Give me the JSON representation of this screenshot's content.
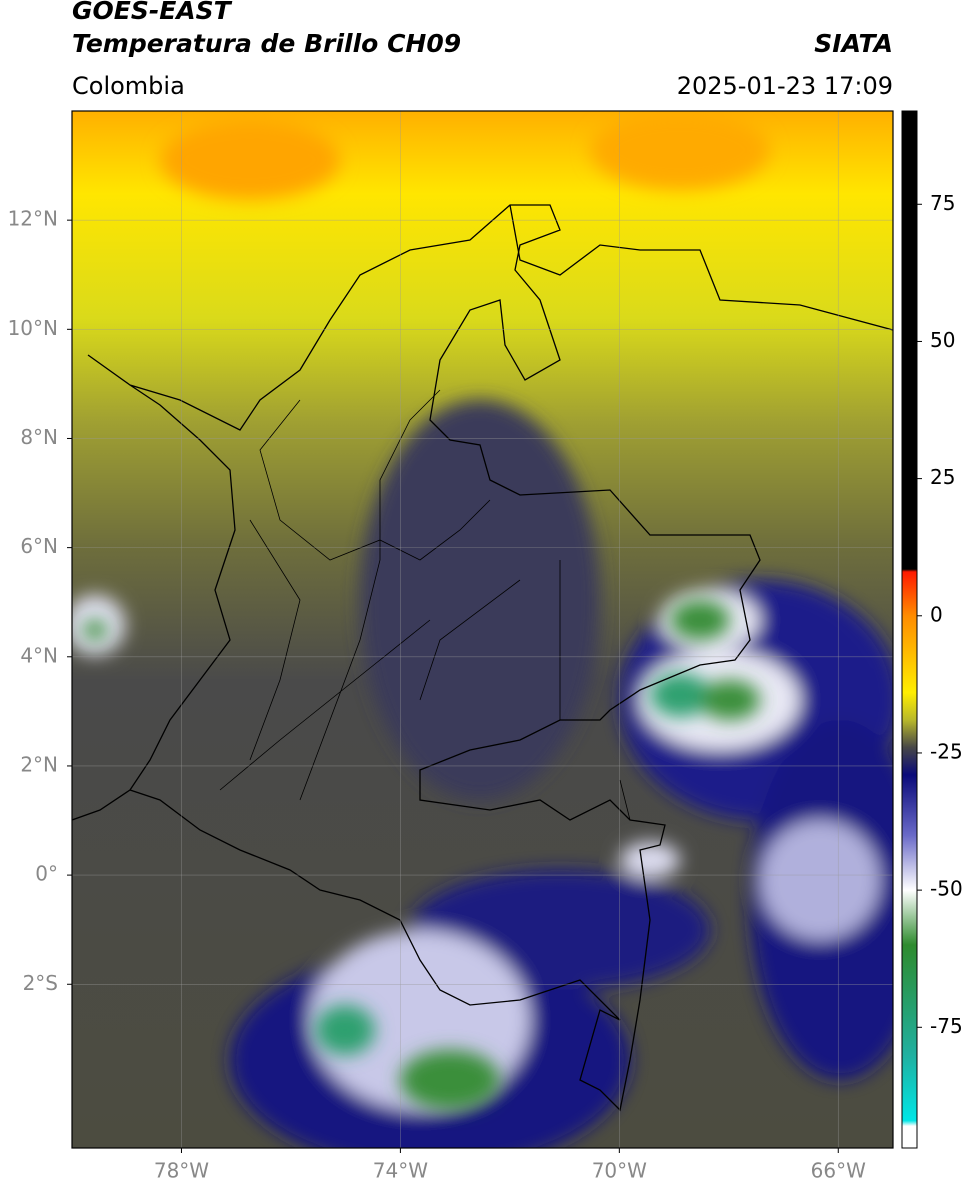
{
  "header": {
    "title": "GOES-EAST",
    "subtitle": "Temperatura de Brillo CH09",
    "source": "SIATA",
    "region": "Colombia",
    "datetime": "2025-01-23 17:09"
  },
  "map": {
    "xlim": [
      -80,
      -65
    ],
    "ylim": [
      -5,
      14
    ],
    "grid": true,
    "xticks": [
      {
        "value": -78,
        "label": "78°W"
      },
      {
        "value": -74,
        "label": "74°W"
      },
      {
        "value": -70,
        "label": "70°W"
      },
      {
        "value": -66,
        "label": "66°W"
      }
    ],
    "yticks": [
      {
        "value": 12,
        "label": "12°N"
      },
      {
        "value": 10,
        "label": "10°N"
      },
      {
        "value": 8,
        "label": "8°N"
      },
      {
        "value": 6,
        "label": "6°N"
      },
      {
        "value": 4,
        "label": "4°N"
      },
      {
        "value": 2,
        "label": "2°N"
      },
      {
        "value": 0,
        "label": "0°"
      },
      {
        "value": -2,
        "label": "2°S"
      }
    ]
  },
  "colorbar": {
    "lim": [
      -97,
      92
    ],
    "ticks": [
      75,
      50,
      25,
      0,
      -25,
      -50,
      -75
    ],
    "stops": [
      [
        92,
        "#000000"
      ],
      [
        8.5,
        "#000000"
      ],
      [
        8,
        "#ff1a00"
      ],
      [
        0,
        "#ff8c00"
      ],
      [
        -14,
        "#ffee00"
      ],
      [
        -19,
        "#b8b82a"
      ],
      [
        -24,
        "#474747"
      ],
      [
        -29,
        "#0a0a7a"
      ],
      [
        -40,
        "#6a6ac8"
      ],
      [
        -50,
        "#ffffff"
      ],
      [
        -60,
        "#2e8b2e"
      ],
      [
        -80,
        "#20b0a0"
      ],
      [
        -92,
        "#00e6e6"
      ],
      [
        -93,
        "#ffffff"
      ],
      [
        -97,
        "#ffffff"
      ]
    ]
  }
}
